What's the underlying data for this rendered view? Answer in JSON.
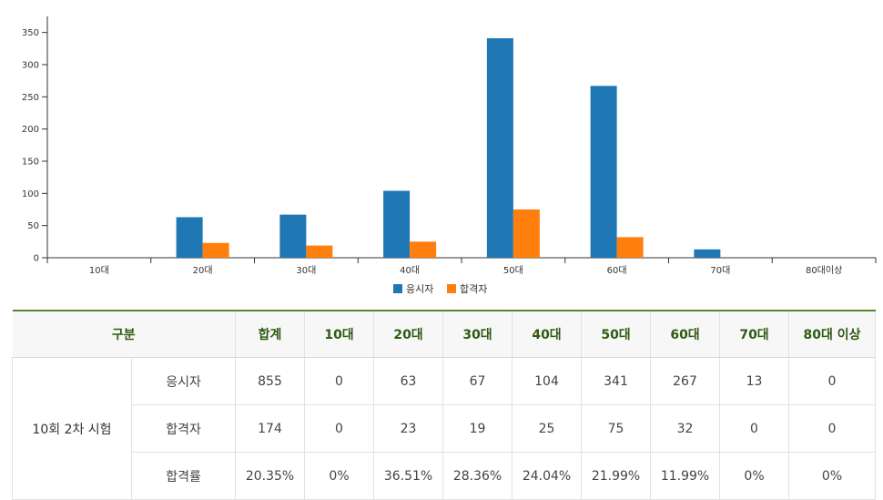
{
  "chart_data": {
    "type": "bar",
    "categories": [
      "10대",
      "20대",
      "30대",
      "40대",
      "50대",
      "60대",
      "70대",
      "80대이상"
    ],
    "series": [
      {
        "name": "응시자",
        "color": "#1f77b4",
        "values": [
          0,
          63,
          67,
          104,
          341,
          267,
          13,
          0
        ]
      },
      {
        "name": "합격자",
        "color": "#ff7f0e",
        "values": [
          0,
          23,
          19,
          25,
          75,
          32,
          0,
          0
        ]
      }
    ],
    "yticks": [
      0,
      50,
      100,
      150,
      200,
      250,
      300,
      350
    ],
    "ylim": [
      0,
      375
    ],
    "grid": false,
    "legend": "bottom-center"
  },
  "table": {
    "header": [
      "구분",
      "합계",
      "10대",
      "20대",
      "30대",
      "40대",
      "50대",
      "60대",
      "70대",
      "80대 이상"
    ],
    "group_label": "10회 2차 시험",
    "rows": [
      {
        "label": "응시자",
        "values": [
          "855",
          "0",
          "63",
          "67",
          "104",
          "341",
          "267",
          "13",
          "0"
        ]
      },
      {
        "label": "합격자",
        "values": [
          "174",
          "0",
          "23",
          "19",
          "25",
          "75",
          "32",
          "0",
          "0"
        ]
      },
      {
        "label": "합격률",
        "values": [
          "20.35%",
          "0%",
          "36.51%",
          "28.36%",
          "24.04%",
          "21.99%",
          "11.99%",
          "0%",
          "0%"
        ]
      }
    ]
  }
}
